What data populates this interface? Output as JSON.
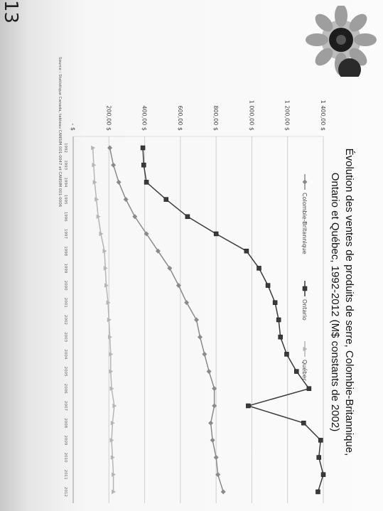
{
  "slide_number": "13",
  "chart_data": {
    "type": "line",
    "title": "Évolution des ventes de produits de serre, Colombie-Britannique,",
    "subtitle": "Ontario et Québec, 1992-2012 (M$ constants de 2002)",
    "source": "Source : Statistique Canada, tableau CANSIM 001-0047 et CANSIM 001-0006",
    "xlabel": "",
    "ylabel": "",
    "y_ticks": [
      "-   $",
      "200,00 $",
      "400,00 $",
      "600,00 $",
      "800,00 $",
      "1 000,00 $",
      "1 200,00 $",
      "1 400,00 $"
    ],
    "ylim": [
      0,
      1400
    ],
    "x": [
      "1992",
      "1993",
      "1994",
      "1995",
      "1996",
      "1997",
      "1998",
      "1999",
      "2000",
      "2001",
      "2002",
      "2003",
      "2004",
      "2005",
      "2006",
      "2007",
      "2008",
      "2009",
      "2010",
      "2011",
      "2012"
    ],
    "series": [
      {
        "name": "Colombie-Britannique",
        "color": "#8a8a8a",
        "marker": "diamond",
        "values": [
          205,
          225,
          255,
          295,
          345,
          410,
          475,
          540,
          590,
          635,
          690,
          710,
          735,
          760,
          790,
          790,
          770,
          780,
          800,
          810,
          840
        ]
      },
      {
        "name": "Ontario",
        "color": "#3a3a3a",
        "marker": "square",
        "values": [
          390,
          395,
          410,
          520,
          640,
          800,
          970,
          1040,
          1090,
          1130,
          1150,
          1160,
          1195,
          1250,
          1320,
          980,
          1290,
          1385,
          1375,
          1400,
          1370
        ]
      },
      {
        "name": "Québec",
        "color": "#b5b5b5",
        "marker": "triangle",
        "values": [
          110,
          115,
          120,
          130,
          140,
          155,
          175,
          180,
          185,
          195,
          200,
          205,
          210,
          210,
          215,
          230,
          220,
          215,
          220,
          225,
          225
        ]
      }
    ]
  }
}
